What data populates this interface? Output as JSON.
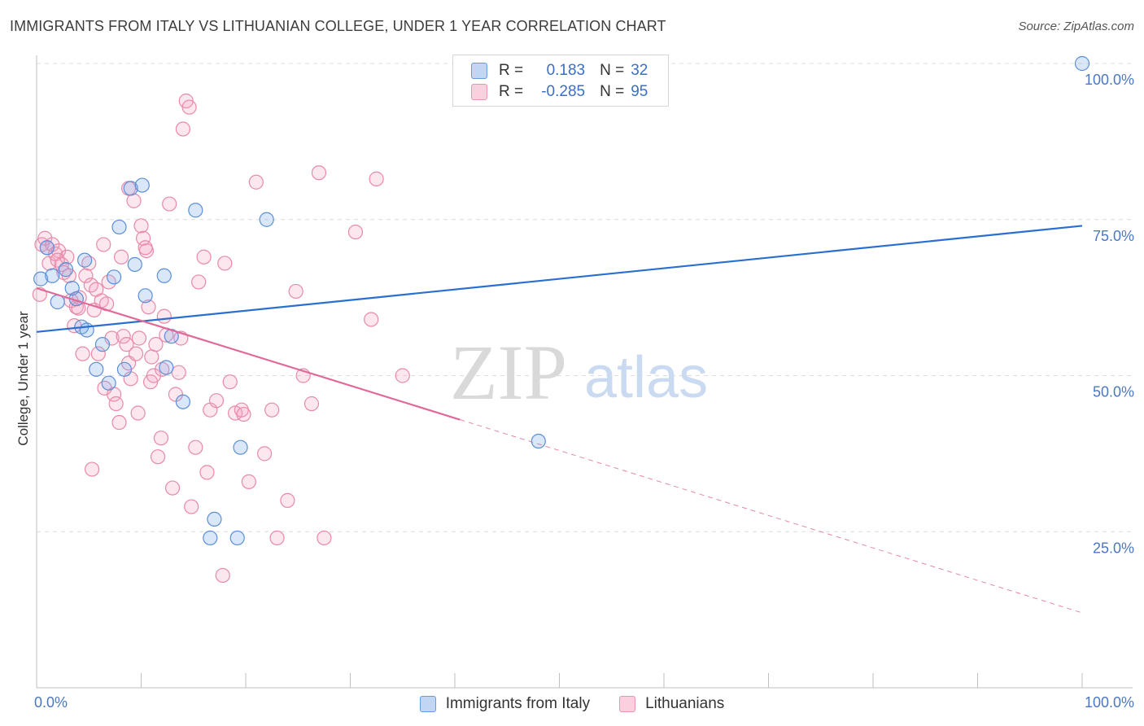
{
  "header": {
    "title": "IMMIGRANTS FROM ITALY VS LITHUANIAN COLLEGE, UNDER 1 YEAR CORRELATION CHART",
    "source": "Source: ZipAtlas.com"
  },
  "watermark": {
    "zip": "ZIP",
    "atlas": "atlas"
  },
  "legend": {
    "rows": [
      {
        "r_label": "R =",
        "r_value": "0.183",
        "n_label": "N =",
        "n_value": "32",
        "color": "#8cb4eb"
      },
      {
        "r_label": "R =",
        "r_value": "-0.285",
        "n_label": "N =",
        "n_value": "95",
        "color": "#f5aac3"
      }
    ],
    "bottom": [
      {
        "label": "Immigrants from Italy",
        "color": "#8cb4eb"
      },
      {
        "label": "Lithuanians",
        "color": "#f5aac3"
      }
    ]
  },
  "chart_data": {
    "type": "scatter",
    "title": "IMMIGRANTS FROM ITALY VS LITHUANIAN COLLEGE, UNDER 1 YEAR CORRELATION CHART",
    "xlabel": "",
    "ylabel": "College, Under 1 year",
    "x_tick_labels": [
      "0.0%",
      "100.0%"
    ],
    "y_tick_labels": [
      "25.0%",
      "50.0%",
      "75.0%",
      "100.0%"
    ],
    "xlim": [
      0,
      100
    ],
    "ylim": [
      0,
      100
    ],
    "grid": true,
    "legend_placement": "top-center",
    "series": [
      {
        "name": "Immigrants from Italy",
        "color": "#5a8fd8",
        "trend": {
          "x": [
            0,
            100
          ],
          "y": [
            57.0,
            74.0
          ],
          "solid_to": 100
        },
        "points": [
          [
            0.4,
            65.5
          ],
          [
            1.0,
            70.5
          ],
          [
            1.5,
            66.0
          ],
          [
            2.0,
            61.8
          ],
          [
            2.8,
            67.0
          ],
          [
            3.4,
            64.0
          ],
          [
            4.3,
            57.8
          ],
          [
            4.6,
            68.5
          ],
          [
            4.8,
            57.3
          ],
          [
            5.7,
            51.0
          ],
          [
            6.3,
            55.0
          ],
          [
            6.9,
            48.8
          ],
          [
            7.4,
            65.8
          ],
          [
            7.9,
            73.8
          ],
          [
            8.4,
            51.0
          ],
          [
            9.0,
            80.0
          ],
          [
            9.4,
            67.8
          ],
          [
            10.1,
            80.5
          ],
          [
            10.4,
            62.8
          ],
          [
            12.2,
            66.0
          ],
          [
            12.9,
            56.3
          ],
          [
            12.4,
            51.3
          ],
          [
            14.0,
            45.8
          ],
          [
            15.2,
            76.5
          ],
          [
            16.6,
            24.0
          ],
          [
            17.0,
            27.0
          ],
          [
            19.2,
            24.0
          ],
          [
            19.5,
            38.5
          ],
          [
            22.0,
            75.0
          ],
          [
            48.0,
            39.5
          ],
          [
            100.0,
            100.0
          ],
          [
            3.8,
            62.3
          ]
        ]
      },
      {
        "name": "Lithuanians",
        "color": "#e889a9",
        "trend": {
          "x": [
            0,
            100
          ],
          "y": [
            64.0,
            12.0
          ],
          "solid_to": 40.5
        },
        "points": [
          [
            0.3,
            63.0
          ],
          [
            0.5,
            71.0
          ],
          [
            0.8,
            72.0
          ],
          [
            1.0,
            70.5
          ],
          [
            1.2,
            68.0
          ],
          [
            1.5,
            71.0
          ],
          [
            1.8,
            69.5
          ],
          [
            2.1,
            70.0
          ],
          [
            2.4,
            67.8
          ],
          [
            2.6,
            66.5
          ],
          [
            2.9,
            69.0
          ],
          [
            3.1,
            66.0
          ],
          [
            3.3,
            62.0
          ],
          [
            3.6,
            58.0
          ],
          [
            3.8,
            61.0
          ],
          [
            4.1,
            62.5
          ],
          [
            4.4,
            53.5
          ],
          [
            4.7,
            66.0
          ],
          [
            5.0,
            68.0
          ],
          [
            5.2,
            64.5
          ],
          [
            5.5,
            60.5
          ],
          [
            5.7,
            63.8
          ],
          [
            5.9,
            53.5
          ],
          [
            6.2,
            62.0
          ],
          [
            6.4,
            71.0
          ],
          [
            6.7,
            61.5
          ],
          [
            6.9,
            65.0
          ],
          [
            7.2,
            56.0
          ],
          [
            7.4,
            47.0
          ],
          [
            7.6,
            45.5
          ],
          [
            7.9,
            42.5
          ],
          [
            8.1,
            69.0
          ],
          [
            8.3,
            56.3
          ],
          [
            8.6,
            55.0
          ],
          [
            8.8,
            52.0
          ],
          [
            9.0,
            49.5
          ],
          [
            9.3,
            78.0
          ],
          [
            9.5,
            53.5
          ],
          [
            9.8,
            56.0
          ],
          [
            10.0,
            74.0
          ],
          [
            10.2,
            72.0
          ],
          [
            10.5,
            70.0
          ],
          [
            10.7,
            61.0
          ],
          [
            10.9,
            49.0
          ],
          [
            11.2,
            50.0
          ],
          [
            11.4,
            55.0
          ],
          [
            11.6,
            37.0
          ],
          [
            11.9,
            40.0
          ],
          [
            12.2,
            59.5
          ],
          [
            12.4,
            56.5
          ],
          [
            12.7,
            77.5
          ],
          [
            13.0,
            32.0
          ],
          [
            13.3,
            47.0
          ],
          [
            13.6,
            50.5
          ],
          [
            14.0,
            89.5
          ],
          [
            14.3,
            94.0
          ],
          [
            14.6,
            93.0
          ],
          [
            14.8,
            29.0
          ],
          [
            15.2,
            38.5
          ],
          [
            15.5,
            65.0
          ],
          [
            16.0,
            69.0
          ],
          [
            16.3,
            34.5
          ],
          [
            16.6,
            44.5
          ],
          [
            17.2,
            46.0
          ],
          [
            18.0,
            68.0
          ],
          [
            18.5,
            49.0
          ],
          [
            19.0,
            44.0
          ],
          [
            19.6,
            44.5
          ],
          [
            20.3,
            33.0
          ],
          [
            21.0,
            81.0
          ],
          [
            21.8,
            37.5
          ],
          [
            22.5,
            44.5
          ],
          [
            23.0,
            24.0
          ],
          [
            24.0,
            30.0
          ],
          [
            24.8,
            63.5
          ],
          [
            25.5,
            50.0
          ],
          [
            26.3,
            45.5
          ],
          [
            27.0,
            82.5
          ],
          [
            27.5,
            24.0
          ],
          [
            30.5,
            73.0
          ],
          [
            32.0,
            59.0
          ],
          [
            32.5,
            81.5
          ],
          [
            35.0,
            50.0
          ],
          [
            19.8,
            43.8
          ],
          [
            5.3,
            35.0
          ],
          [
            8.8,
            80.0
          ],
          [
            10.4,
            70.5
          ],
          [
            11.0,
            53.0
          ],
          [
            12.0,
            51.0
          ],
          [
            17.8,
            18.0
          ],
          [
            6.5,
            48.0
          ],
          [
            9.7,
            44.0
          ],
          [
            13.8,
            56.0
          ],
          [
            2.0,
            68.5
          ],
          [
            4.0,
            60.8
          ]
        ]
      }
    ]
  }
}
